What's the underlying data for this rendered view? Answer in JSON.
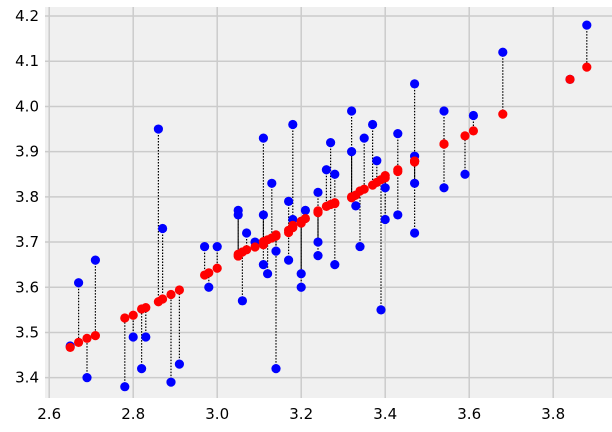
{
  "chart_data": {
    "type": "scatter",
    "title": "",
    "xlabel": "",
    "ylabel": "",
    "xlim": [
      2.59,
      3.94
    ],
    "ylim": [
      3.355,
      4.22
    ],
    "grid": true,
    "legend": "none",
    "x_ticks": [
      "2.6",
      "2.8",
      "3.0",
      "3.2",
      "3.4",
      "3.6",
      "3.8"
    ],
    "x_tick_values": [
      2.6,
      2.8,
      3.0,
      3.2,
      3.4,
      3.6,
      3.8
    ],
    "y_ticks": [
      "3.4",
      "3.5",
      "3.6",
      "3.7",
      "3.8",
      "3.9",
      "4.0",
      "4.1",
      "4.2"
    ],
    "y_tick_values": [
      3.4,
      3.5,
      3.6,
      3.7,
      3.8,
      3.9,
      4.0,
      4.1,
      4.2
    ],
    "colors": {
      "background": "#f0f0f0",
      "grid": "#cbcbcb",
      "observed": "#0000ff",
      "fitted": "#ff0000",
      "residual_line": "#000000"
    },
    "x": [
      2.65,
      2.67,
      2.69,
      2.71,
      2.78,
      2.8,
      2.82,
      2.83,
      2.86,
      2.87,
      2.89,
      2.91,
      2.97,
      2.98,
      3.0,
      3.05,
      3.05,
      3.06,
      3.07,
      3.09,
      3.11,
      3.11,
      3.11,
      3.12,
      3.13,
      3.14,
      3.14,
      3.17,
      3.17,
      3.18,
      3.18,
      3.2,
      3.2,
      3.21,
      3.24,
      3.24,
      3.24,
      3.26,
      3.27,
      3.28,
      3.28,
      3.32,
      3.32,
      3.33,
      3.34,
      3.35,
      3.37,
      3.38,
      3.39,
      3.4,
      3.4,
      3.43,
      3.43,
      3.47,
      3.47,
      3.47,
      3.47,
      3.54,
      3.54,
      3.59,
      3.61,
      3.68,
      3.84,
      3.88
    ],
    "series": [
      {
        "name": "",
        "values": [
          3.47,
          3.61,
          3.4,
          3.66,
          3.38,
          3.49,
          3.42,
          3.49,
          3.95,
          3.73,
          3.39,
          3.43,
          3.69,
          3.6,
          3.69,
          3.77,
          3.76,
          3.57,
          3.72,
          3.7,
          3.93,
          3.76,
          3.65,
          3.63,
          3.83,
          3.42,
          3.68,
          3.79,
          3.66,
          3.96,
          3.75,
          3.63,
          3.6,
          3.77,
          3.81,
          3.7,
          3.67,
          3.86,
          3.92,
          3.85,
          3.65,
          3.9,
          3.99,
          3.78,
          3.69,
          3.93,
          3.96,
          3.88,
          3.55,
          3.75,
          3.82,
          3.94,
          3.76,
          4.05,
          3.89,
          3.83,
          3.72,
          3.99,
          3.82,
          3.85,
          3.98,
          4.12,
          4.06,
          4.18
        ]
      },
      {
        "name": "",
        "values": [
          3.467,
          3.478,
          3.487,
          3.493,
          3.532,
          3.538,
          3.552,
          3.555,
          3.568,
          3.574,
          3.584,
          3.594,
          3.627,
          3.632,
          3.642,
          3.669,
          3.673,
          3.678,
          3.683,
          3.689,
          3.694,
          3.698,
          3.701,
          3.705,
          3.709,
          3.713,
          3.716,
          3.721,
          3.726,
          3.732,
          3.737,
          3.742,
          3.746,
          3.752,
          3.765,
          3.767,
          3.769,
          3.779,
          3.783,
          3.785,
          3.787,
          3.798,
          3.8,
          3.804,
          3.813,
          3.817,
          3.826,
          3.832,
          3.838,
          3.842,
          3.847,
          3.856,
          3.86,
          3.877,
          3.879,
          3.879,
          3.879,
          3.917,
          3.917,
          3.935,
          3.946,
          3.983,
          4.06,
          4.087
        ]
      }
    ]
  }
}
